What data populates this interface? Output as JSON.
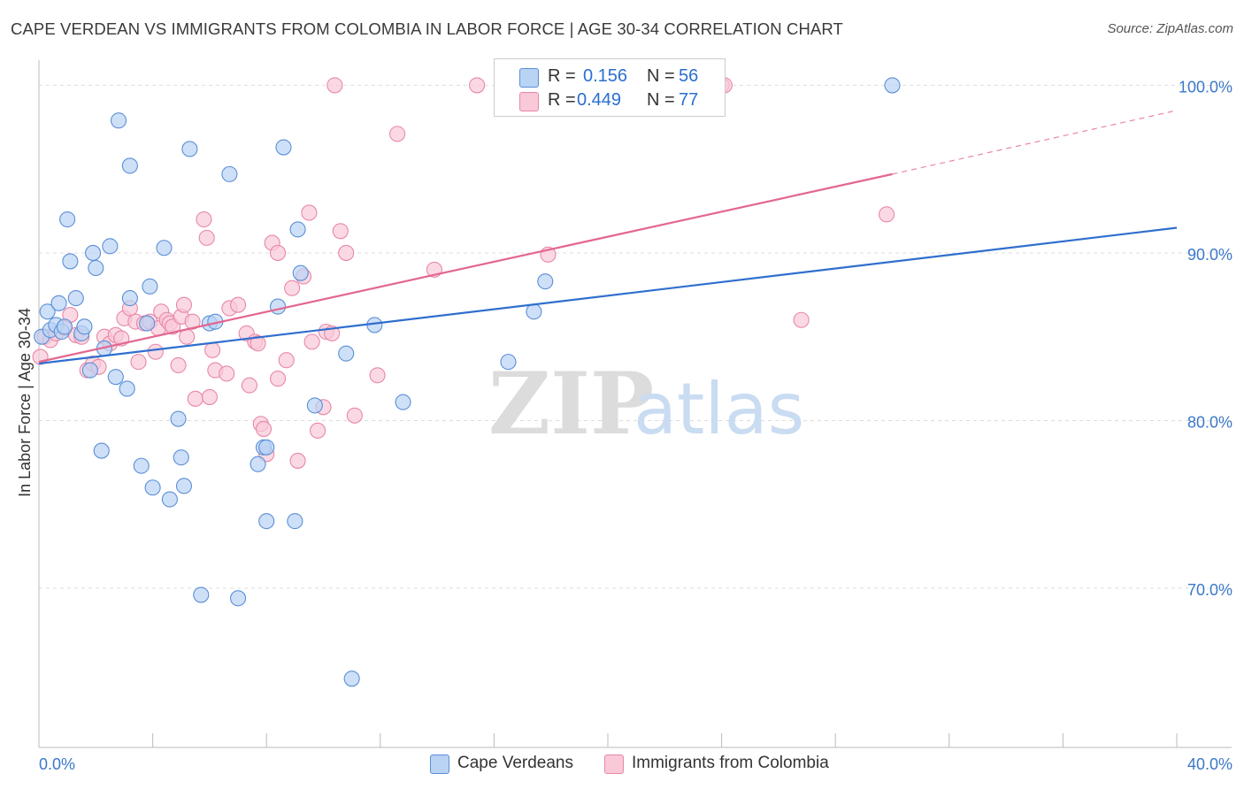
{
  "title": "CAPE VERDEAN VS IMMIGRANTS FROM COLOMBIA IN LABOR FORCE | AGE 30-34 CORRELATION CHART",
  "source": "Source: ZipAtlas.com",
  "watermark": {
    "zip": "ZIP",
    "atlas": "atlas"
  },
  "legend": {
    "r_label": "R =",
    "n_label": "N =",
    "rows": [
      {
        "r": "0.156",
        "n": "56"
      },
      {
        "r": "0.449",
        "n": "77"
      }
    ]
  },
  "colors": {
    "blue_fill": "#b9d3f5",
    "blue_stroke": "#5b8fd6",
    "blue_line": "#2f6fce",
    "pink_fill": "#f9c9d8",
    "pink_stroke": "#e887a7",
    "pink_line": "#e3678f",
    "tick_label": "#3b78c9",
    "grid": "#dddddd"
  },
  "chart_data": {
    "type": "scatter",
    "title": "CAPE VERDEAN VS IMMIGRANTS FROM COLOMBIA IN LABOR FORCE | AGE 30-34 CORRELATION CHART",
    "xlabel": "",
    "ylabel": "In Labor Force | Age 30-34",
    "xlim": [
      0,
      40
    ],
    "ylim": [
      60.5,
      101.5
    ],
    "x_tick_labels": [
      "0.0%",
      "40.0%"
    ],
    "y_ticks": [
      70,
      80,
      90,
      100
    ],
    "y_tick_labels": [
      "70.0%",
      "80.0%",
      "90.0%",
      "100.0%"
    ],
    "grid": true,
    "legend_position": "top-center",
    "series": [
      {
        "name": "Cape Verdeans",
        "r": 0.156,
        "n": 56,
        "trend": {
          "x": [
            0,
            40
          ],
          "y": [
            83.4,
            91.5
          ]
        },
        "points": [
          [
            0.1,
            85.0
          ],
          [
            0.3,
            86.5
          ],
          [
            0.4,
            85.4
          ],
          [
            0.6,
            85.7
          ],
          [
            0.7,
            87.0
          ],
          [
            0.8,
            85.3
          ],
          [
            0.9,
            85.6
          ],
          [
            1.0,
            92.0
          ],
          [
            1.1,
            89.5
          ],
          [
            1.3,
            87.3
          ],
          [
            1.5,
            85.2
          ],
          [
            1.6,
            85.6
          ],
          [
            1.8,
            83.0
          ],
          [
            1.9,
            90.0
          ],
          [
            2.0,
            89.1
          ],
          [
            2.2,
            78.2
          ],
          [
            2.3,
            84.3
          ],
          [
            2.5,
            90.4
          ],
          [
            2.7,
            82.6
          ],
          [
            2.8,
            97.9
          ],
          [
            3.1,
            81.9
          ],
          [
            3.2,
            87.3
          ],
          [
            3.2,
            95.2
          ],
          [
            3.6,
            77.3
          ],
          [
            3.8,
            85.8
          ],
          [
            3.9,
            88.0
          ],
          [
            4.0,
            76.0
          ],
          [
            4.4,
            90.3
          ],
          [
            4.6,
            75.3
          ],
          [
            4.9,
            80.1
          ],
          [
            5.0,
            77.8
          ],
          [
            5.1,
            76.1
          ],
          [
            5.3,
            96.2
          ],
          [
            5.7,
            69.6
          ],
          [
            6.0,
            85.8
          ],
          [
            6.2,
            85.9
          ],
          [
            6.7,
            94.7
          ],
          [
            7.0,
            69.4
          ],
          [
            7.7,
            77.4
          ],
          [
            7.9,
            78.4
          ],
          [
            8.0,
            74.0
          ],
          [
            8.0,
            78.4
          ],
          [
            8.4,
            86.8
          ],
          [
            8.6,
            96.3
          ],
          [
            9.0,
            74.0
          ],
          [
            9.1,
            91.4
          ],
          [
            9.2,
            88.8
          ],
          [
            9.7,
            80.9
          ],
          [
            10.8,
            84.0
          ],
          [
            11.0,
            64.6
          ],
          [
            11.8,
            85.7
          ],
          [
            12.8,
            81.1
          ],
          [
            16.5,
            83.5
          ],
          [
            17.4,
            86.5
          ],
          [
            17.8,
            88.3
          ],
          [
            30.0,
            100.0
          ]
        ]
      },
      {
        "name": "Immigrants from Colombia",
        "r": 0.449,
        "n": 77,
        "trend": {
          "x": [
            0,
            30
          ],
          "y": [
            83.5,
            94.7
          ]
        },
        "trend_dashed": {
          "x": [
            30,
            40
          ],
          "y": [
            94.7,
            98.5
          ]
        },
        "points": [
          [
            0.05,
            83.8
          ],
          [
            0.2,
            85.0
          ],
          [
            0.4,
            84.8
          ],
          [
            0.6,
            85.2
          ],
          [
            0.9,
            85.5
          ],
          [
            1.1,
            86.3
          ],
          [
            1.3,
            85.1
          ],
          [
            1.5,
            85.0
          ],
          [
            1.7,
            83.0
          ],
          [
            1.9,
            83.4
          ],
          [
            2.1,
            83.2
          ],
          [
            2.3,
            85.0
          ],
          [
            2.5,
            84.6
          ],
          [
            2.7,
            85.1
          ],
          [
            2.9,
            84.9
          ],
          [
            3.0,
            86.1
          ],
          [
            3.2,
            86.7
          ],
          [
            3.4,
            85.9
          ],
          [
            3.5,
            83.5
          ],
          [
            3.7,
            85.8
          ],
          [
            3.9,
            85.9
          ],
          [
            4.1,
            84.1
          ],
          [
            4.2,
            85.5
          ],
          [
            4.3,
            86.5
          ],
          [
            4.5,
            86.0
          ],
          [
            4.6,
            85.8
          ],
          [
            4.7,
            85.6
          ],
          [
            4.9,
            83.3
          ],
          [
            5.0,
            86.2
          ],
          [
            5.1,
            86.9
          ],
          [
            5.2,
            85.0
          ],
          [
            5.4,
            85.9
          ],
          [
            5.5,
            81.3
          ],
          [
            5.8,
            92.0
          ],
          [
            5.9,
            90.9
          ],
          [
            6.0,
            81.4
          ],
          [
            6.1,
            84.2
          ],
          [
            6.2,
            83.0
          ],
          [
            6.6,
            82.8
          ],
          [
            6.7,
            86.7
          ],
          [
            7.0,
            86.9
          ],
          [
            7.3,
            85.2
          ],
          [
            7.4,
            82.1
          ],
          [
            7.6,
            84.7
          ],
          [
            7.7,
            84.6
          ],
          [
            7.8,
            79.8
          ],
          [
            7.9,
            79.5
          ],
          [
            8.0,
            78.0
          ],
          [
            8.2,
            90.6
          ],
          [
            8.4,
            90.0
          ],
          [
            8.4,
            82.5
          ],
          [
            8.7,
            83.6
          ],
          [
            8.9,
            87.9
          ],
          [
            9.1,
            77.6
          ],
          [
            9.3,
            88.6
          ],
          [
            9.5,
            92.4
          ],
          [
            9.6,
            84.7
          ],
          [
            9.8,
            79.4
          ],
          [
            10.0,
            80.8
          ],
          [
            10.1,
            85.3
          ],
          [
            10.3,
            85.2
          ],
          [
            10.4,
            100.0
          ],
          [
            10.6,
            91.3
          ],
          [
            10.8,
            90.0
          ],
          [
            11.1,
            80.3
          ],
          [
            11.9,
            82.7
          ],
          [
            12.6,
            97.1
          ],
          [
            13.9,
            89.0
          ],
          [
            15.4,
            100.0
          ],
          [
            16.3,
            100.0
          ],
          [
            16.4,
            100.0
          ],
          [
            17.9,
            89.9
          ],
          [
            19.6,
            100.0
          ],
          [
            24.0,
            100.0
          ],
          [
            26.8,
            86.0
          ],
          [
            29.8,
            92.3
          ],
          [
            24.1,
            100.0
          ]
        ]
      }
    ]
  }
}
